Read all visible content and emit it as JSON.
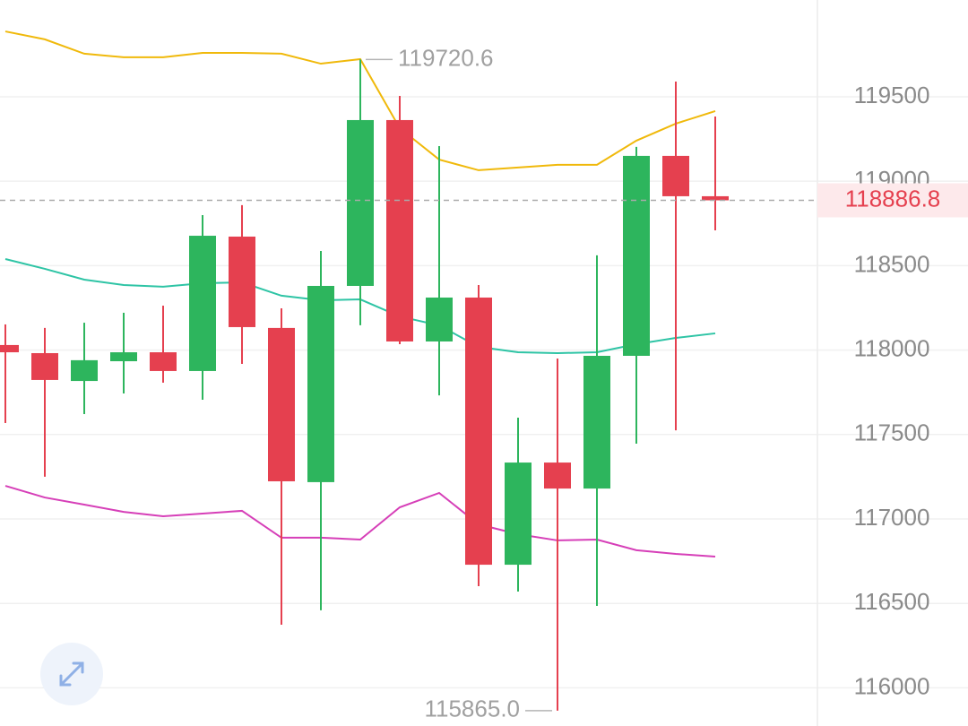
{
  "chart_data": {
    "type": "candlestick",
    "open": [
      118030,
      117982,
      117817,
      117934,
      117987,
      117876,
      118672,
      118131,
      117218,
      118380,
      119362,
      118051,
      118311,
      116729,
      117334,
      117180,
      117966,
      119150,
      118911
    ],
    "high": [
      118152,
      118131,
      118162,
      118221,
      118263,
      118799,
      118858,
      118247,
      118587,
      119720.6,
      119505,
      119208,
      118385,
      117600,
      117950,
      118561,
      119203,
      119590,
      119383
    ],
    "low": [
      117568,
      117250,
      117621,
      117743,
      117807,
      117706,
      117918,
      116374,
      116459,
      118147,
      118035,
      117732,
      116602,
      116570,
      115865,
      116485,
      117446,
      117525,
      118709
    ],
    "close": [
      117987,
      117823,
      117940,
      117987,
      117876,
      118677,
      118136,
      117223,
      118380,
      119362,
      118051,
      118311,
      116729,
      117334,
      117180,
      117966,
      119150,
      118911,
      118886.8
    ],
    "up_color": "#2db55d",
    "down_color": "#e5404f",
    "lines": [
      {
        "color": "#f0b90b",
        "values": [
          119887,
          119840,
          119755,
          119734,
          119734,
          119760,
          119760,
          119755,
          119696,
          119723,
          119314,
          119128,
          119065,
          119081,
          119097,
          119097,
          119240,
          119341,
          119415
        ]
      },
      {
        "color": "#2ec4a5",
        "values": [
          118539,
          118481,
          118417,
          118385,
          118375,
          118396,
          118401,
          118322,
          118295,
          118300,
          118199,
          118146,
          118019,
          117987,
          117982,
          117987,
          118035,
          118072,
          118099
        ]
      },
      {
        "color": "#d63fb8",
        "values": [
          117196,
          117127,
          117085,
          117042,
          117016,
          117032,
          117048,
          116889,
          116889,
          116878,
          117069,
          117154,
          116968,
          116910,
          116873,
          116878,
          116815,
          116793,
          116777
        ]
      }
    ],
    "annotations": [
      119720.6,
      {
        "value": 115865,
        "label": "115865.0"
      }
    ],
    "last_price": 118886.8,
    "ylim": [
      115774,
      120073
    ],
    "yticks": [
      116000,
      116500,
      117000,
      117500,
      118000,
      118500,
      119000,
      119500
    ],
    "grid": true
  }
}
